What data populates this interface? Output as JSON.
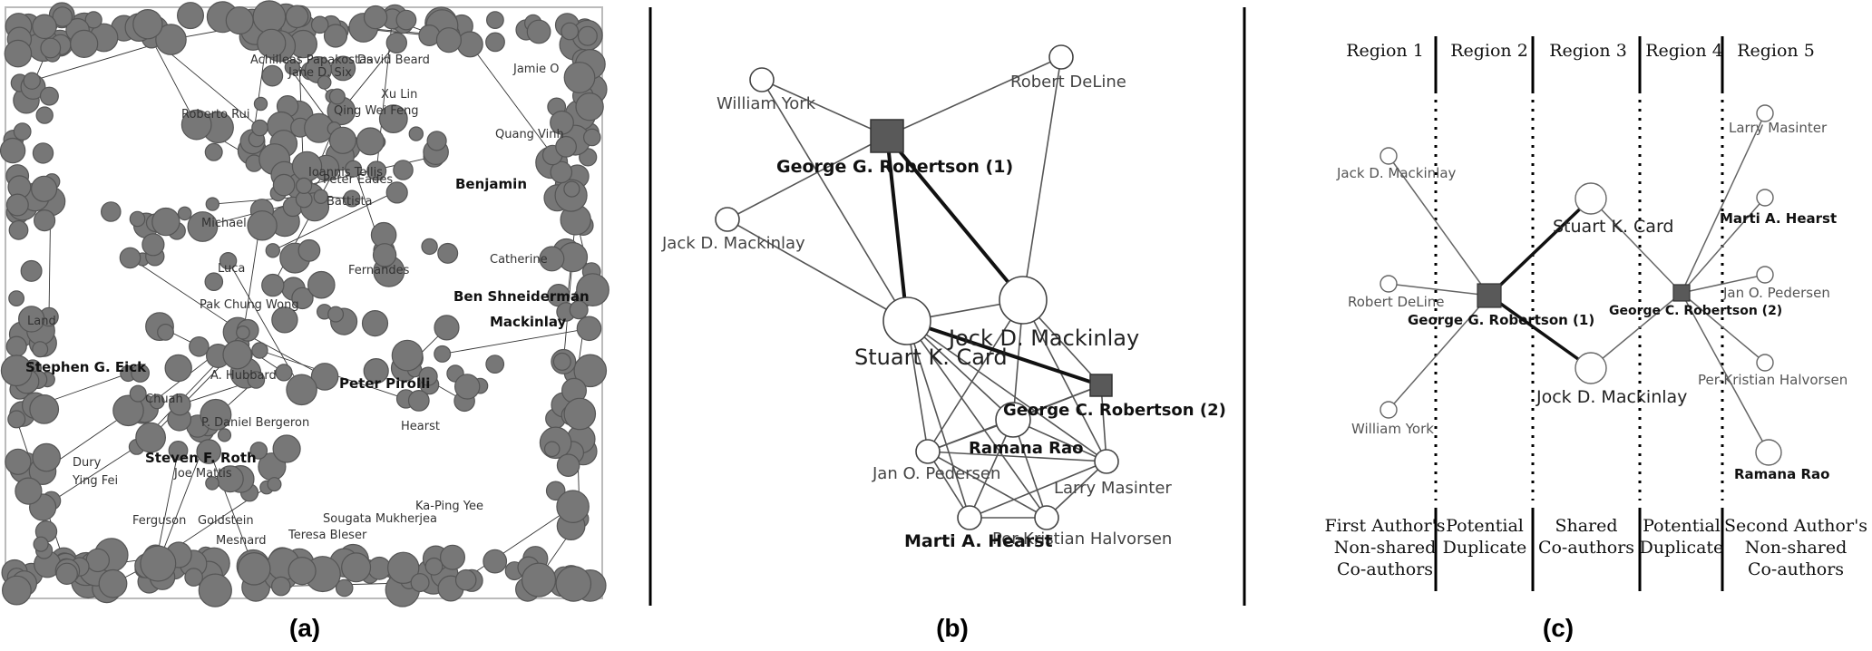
{
  "captions": {
    "a": "(a)",
    "b": "(b)",
    "c": "(c)"
  },
  "panel_a": {
    "labels": [
      {
        "name": "Achilleas Papakostas",
        "bold": false
      },
      {
        "name": "David Beard",
        "bold": false
      },
      {
        "name": "Jane D. Six",
        "bold": false
      },
      {
        "name": "Jamie O",
        "bold": false
      },
      {
        "name": "Xu Lin",
        "bold": false
      },
      {
        "name": "Qing Wei Feng",
        "bold": false
      },
      {
        "name": "Roberto Rui",
        "bold": false
      },
      {
        "name": "Ioannis Tollis",
        "bold": false
      },
      {
        "name": "Quang Vinh",
        "bold": false
      },
      {
        "name": "Peter Eades",
        "bold": false
      },
      {
        "name": "Benjamin",
        "bold": true
      },
      {
        "name": "Battista",
        "bold": false
      },
      {
        "name": "Michael",
        "bold": false
      },
      {
        "name": "Catherine",
        "bold": false
      },
      {
        "name": "Luca",
        "bold": false
      },
      {
        "name": "Fernandes",
        "bold": false
      },
      {
        "name": "Pak Chung Wong",
        "bold": false
      },
      {
        "name": "Ben Shneiderman",
        "bold": true
      },
      {
        "name": "Mackinlay",
        "bold": true
      },
      {
        "name": "A. Hubbard",
        "bold": false
      },
      {
        "name": "Stephen G. Eick",
        "bold": true
      },
      {
        "name": "Peter Pirolli",
        "bold": true
      },
      {
        "name": "Chuah",
        "bold": false
      },
      {
        "name": "P. Daniel Bergeron",
        "bold": false
      },
      {
        "name": "Hearst",
        "bold": false
      },
      {
        "name": "Steven F. Roth",
        "bold": true
      },
      {
        "name": "Joe Mattis",
        "bold": false
      },
      {
        "name": "Ka-Ping Yee",
        "bold": false
      },
      {
        "name": "Teresa Bleser",
        "bold": false
      },
      {
        "name": "Sougata Mukherjea",
        "bold": false
      },
      {
        "name": "Ferguson",
        "bold": false
      },
      {
        "name": "Goldstein",
        "bold": false
      },
      {
        "name": "Mesnard",
        "bold": false
      },
      {
        "name": "Dury",
        "bold": false
      },
      {
        "name": "Ying Fei",
        "bold": false
      },
      {
        "name": "Land",
        "bold": false
      }
    ]
  },
  "panel_b": {
    "nodes": [
      {
        "id": "wy",
        "label": "William York",
        "shape": "circle",
        "bold": false
      },
      {
        "id": "gr1",
        "label": "George G. Robertson (1)",
        "shape": "square",
        "bold": true
      },
      {
        "id": "rd",
        "label": "Robert DeLine",
        "shape": "circle",
        "bold": false
      },
      {
        "id": "jdm",
        "label": "Jack D. Mackinlay",
        "shape": "circle",
        "bold": false
      },
      {
        "id": "skc",
        "label": "Stuart K. Card",
        "shape": "circle",
        "bold": false
      },
      {
        "id": "jock",
        "label": "Jock D. Mackinlay",
        "shape": "circle",
        "bold": false
      },
      {
        "id": "gr2",
        "label": "George C. Robertson (2)",
        "shape": "square",
        "bold": true
      },
      {
        "id": "rr",
        "label": "Ramana Rao",
        "shape": "circle",
        "bold": true
      },
      {
        "id": "jop",
        "label": "Jan O. Pedersen",
        "shape": "circle",
        "bold": false
      },
      {
        "id": "lm",
        "label": "Larry Masinter",
        "shape": "circle",
        "bold": false
      },
      {
        "id": "mah",
        "label": "Marti A. Hearst",
        "shape": "circle",
        "bold": true
      },
      {
        "id": "pkh",
        "label": "Per-Kristian Halvorsen",
        "shape": "circle",
        "bold": false
      }
    ]
  },
  "panel_c": {
    "regions": [
      "Region 1",
      "Region 2",
      "Region 3",
      "Region 4",
      "Region 5"
    ],
    "region_captions": [
      [
        "First Author's",
        "Non-shared",
        "Co-authors"
      ],
      [
        "Potential",
        "Duplicate"
      ],
      [
        "Shared",
        "Co-authors"
      ],
      [
        "Potential",
        "Duplicate"
      ],
      [
        "Second Author's",
        "Non-shared",
        "Co-authors"
      ]
    ],
    "nodes": [
      {
        "id": "c_jdm",
        "label": "Jack D. Mackinlay",
        "bold": false
      },
      {
        "id": "c_rd",
        "label": "Robert DeLine",
        "bold": false
      },
      {
        "id": "c_wy",
        "label": "William York",
        "bold": false
      },
      {
        "id": "c_gr1",
        "label": "George G. Robertson (1)",
        "bold": true
      },
      {
        "id": "c_skc",
        "label": "Stuart K. Card",
        "bold": false
      },
      {
        "id": "c_jock",
        "label": "Jock D. Mackinlay",
        "bold": false
      },
      {
        "id": "c_gr2",
        "label": "George C. Robertson (2)",
        "bold": true
      },
      {
        "id": "c_lm",
        "label": "Larry Masinter",
        "bold": false
      },
      {
        "id": "c_mah",
        "label": "Marti A. Hearst",
        "bold": true
      },
      {
        "id": "c_jop",
        "label": "Jan O. Pedersen",
        "bold": false
      },
      {
        "id": "c_pkh",
        "label": "Per-Kristian Halvorsen",
        "bold": false
      },
      {
        "id": "c_rr",
        "label": "Ramana Rao",
        "bold": true
      }
    ]
  },
  "colors": {
    "node_fill": "#777777",
    "node_stroke": "#555555",
    "square_fill": "#595959",
    "edge": "#555555",
    "strong_edge": "#111111"
  }
}
